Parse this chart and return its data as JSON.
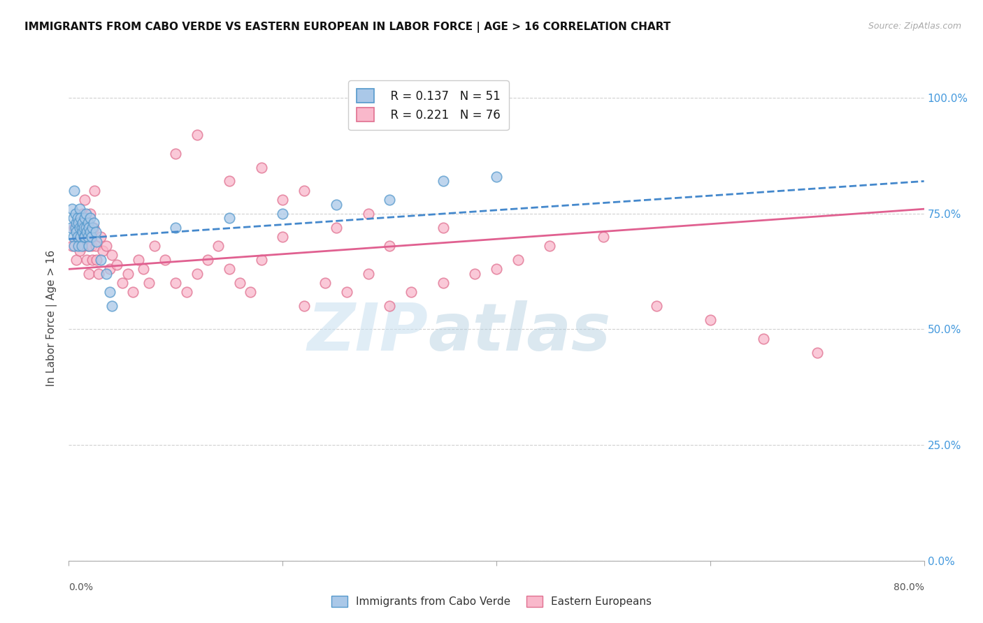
{
  "title": "IMMIGRANTS FROM CABO VERDE VS EASTERN EUROPEAN IN LABOR FORCE | AGE > 16 CORRELATION CHART",
  "source": "Source: ZipAtlas.com",
  "ylabel_left": "In Labor Force | Age > 16",
  "x_min": 0.0,
  "x_max": 0.8,
  "y_min": 0.0,
  "y_max": 1.05,
  "R1": "0.137",
  "N1": "51",
  "R2": "0.221",
  "N2": "76",
  "color_blue_fill": "#aac8e8",
  "color_blue_edge": "#5599cc",
  "color_blue_line": "#4488cc",
  "color_pink_fill": "#f9b8cb",
  "color_pink_edge": "#e07090",
  "color_pink_line": "#e06090",
  "color_right_axis": "#4499dd",
  "cabo_verde_x": [
    0.002,
    0.003,
    0.004,
    0.004,
    0.005,
    0.005,
    0.006,
    0.006,
    0.007,
    0.007,
    0.008,
    0.008,
    0.009,
    0.009,
    0.01,
    0.01,
    0.011,
    0.011,
    0.012,
    0.012,
    0.013,
    0.013,
    0.014,
    0.014,
    0.015,
    0.015,
    0.016,
    0.016,
    0.017,
    0.018,
    0.018,
    0.019,
    0.019,
    0.02,
    0.02,
    0.021,
    0.022,
    0.023,
    0.025,
    0.026,
    0.03,
    0.035,
    0.038,
    0.04,
    0.1,
    0.15,
    0.2,
    0.25,
    0.3,
    0.35,
    0.4
  ],
  "cabo_verde_y": [
    0.72,
    0.76,
    0.7,
    0.74,
    0.68,
    0.8,
    0.72,
    0.75,
    0.73,
    0.71,
    0.74,
    0.7,
    0.73,
    0.68,
    0.76,
    0.72,
    0.7,
    0.74,
    0.72,
    0.68,
    0.71,
    0.73,
    0.7,
    0.72,
    0.74,
    0.7,
    0.72,
    0.75,
    0.71,
    0.73,
    0.7,
    0.72,
    0.68,
    0.74,
    0.71,
    0.7,
    0.72,
    0.73,
    0.71,
    0.69,
    0.65,
    0.62,
    0.58,
    0.55,
    0.72,
    0.74,
    0.75,
    0.77,
    0.78,
    0.82,
    0.83
  ],
  "eastern_eu_x": [
    0.003,
    0.005,
    0.007,
    0.008,
    0.009,
    0.01,
    0.011,
    0.012,
    0.013,
    0.014,
    0.015,
    0.015,
    0.016,
    0.017,
    0.018,
    0.018,
    0.019,
    0.02,
    0.02,
    0.021,
    0.022,
    0.023,
    0.024,
    0.025,
    0.026,
    0.028,
    0.03,
    0.032,
    0.035,
    0.038,
    0.04,
    0.045,
    0.05,
    0.055,
    0.06,
    0.065,
    0.07,
    0.075,
    0.08,
    0.09,
    0.1,
    0.11,
    0.12,
    0.13,
    0.14,
    0.15,
    0.16,
    0.17,
    0.18,
    0.2,
    0.22,
    0.24,
    0.26,
    0.28,
    0.3,
    0.32,
    0.35,
    0.38,
    0.4,
    0.42,
    0.1,
    0.12,
    0.15,
    0.18,
    0.2,
    0.22,
    0.25,
    0.28,
    0.3,
    0.35,
    0.45,
    0.5,
    0.55,
    0.6,
    0.65,
    0.7
  ],
  "eastern_eu_y": [
    0.68,
    0.72,
    0.65,
    0.7,
    0.73,
    0.67,
    0.71,
    0.69,
    0.75,
    0.68,
    0.72,
    0.78,
    0.7,
    0.65,
    0.73,
    0.68,
    0.62,
    0.75,
    0.7,
    0.68,
    0.65,
    0.72,
    0.8,
    0.68,
    0.65,
    0.62,
    0.7,
    0.67,
    0.68,
    0.63,
    0.66,
    0.64,
    0.6,
    0.62,
    0.58,
    0.65,
    0.63,
    0.6,
    0.68,
    0.65,
    0.6,
    0.58,
    0.62,
    0.65,
    0.68,
    0.63,
    0.6,
    0.58,
    0.65,
    0.7,
    0.55,
    0.6,
    0.58,
    0.62,
    0.55,
    0.58,
    0.6,
    0.62,
    0.63,
    0.65,
    0.88,
    0.92,
    0.82,
    0.85,
    0.78,
    0.8,
    0.72,
    0.75,
    0.68,
    0.72,
    0.68,
    0.7,
    0.55,
    0.52,
    0.48,
    0.45
  ],
  "yticks": [
    0.0,
    0.25,
    0.5,
    0.75,
    1.0
  ],
  "ytick_labels_right": [
    "0.0%",
    "25.0%",
    "50.0%",
    "75.0%",
    "100.0%"
  ],
  "xtick_left_label": "0.0%",
  "xtick_right_label": "80.0%",
  "legend_label_1": "Immigrants from Cabo Verde",
  "legend_label_2": "Eastern Europeans"
}
